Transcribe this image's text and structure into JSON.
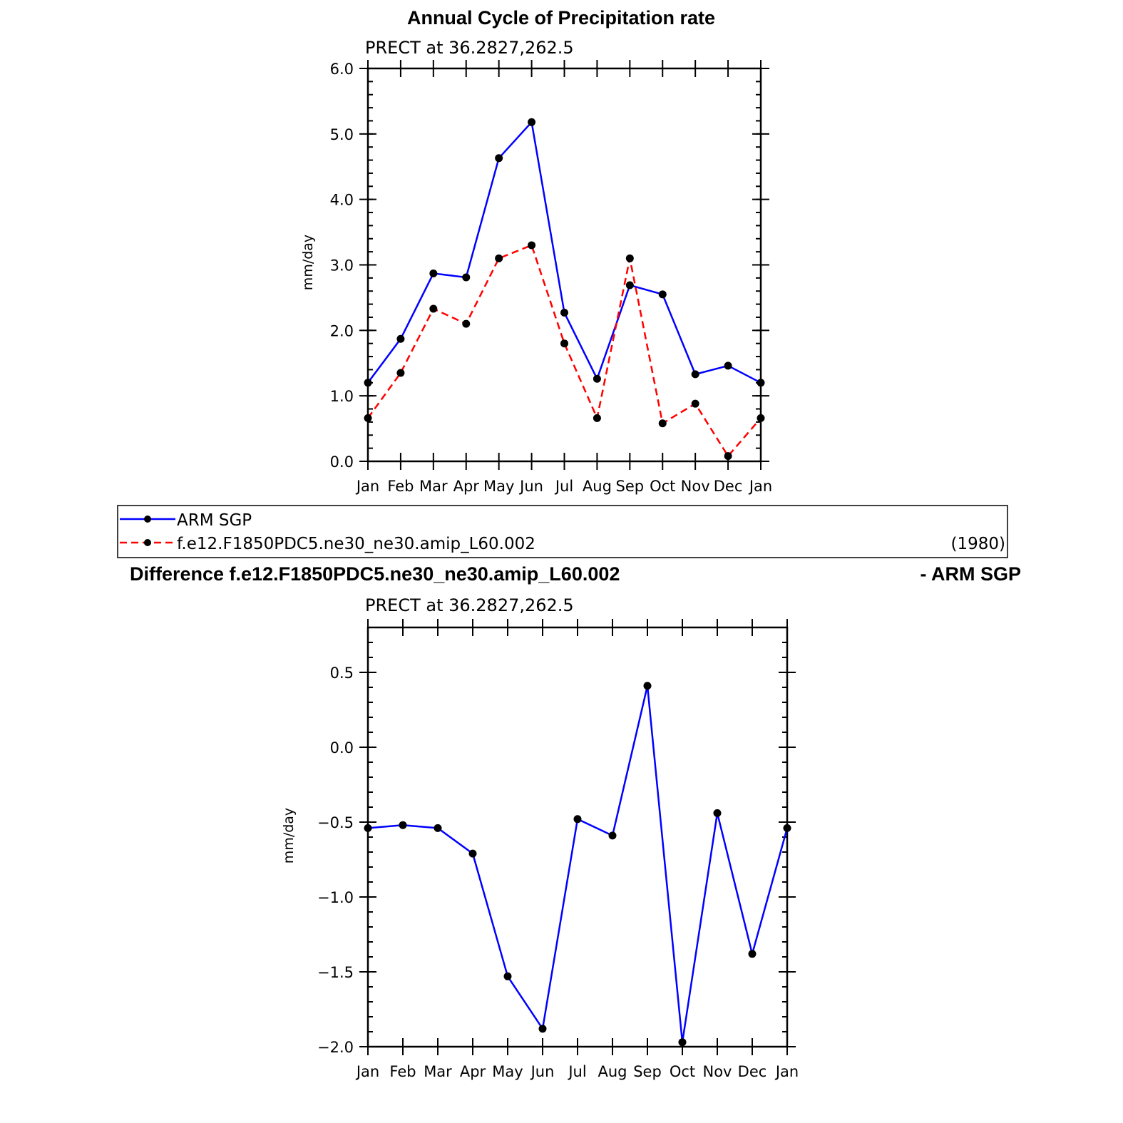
{
  "chart_data": [
    {
      "type": "line",
      "title": "Annual Cycle of Precipitation rate",
      "subtitle": "PRECT at 36.2827,262.5",
      "ylabel": "mm/day",
      "ylim": [
        0,
        6
      ],
      "yticks": [
        "0.0",
        "1.0",
        "2.0",
        "3.0",
        "4.0",
        "5.0",
        "6.0"
      ],
      "categories": [
        "Jan",
        "Feb",
        "Mar",
        "Apr",
        "May",
        "Jun",
        "Jul",
        "Aug",
        "Sep",
        "Oct",
        "Nov",
        "Dec",
        "Jan"
      ],
      "series": [
        {
          "name": "ARM SGP",
          "color": "#0000ff",
          "dash": "solid",
          "values": [
            1.2,
            1.87,
            2.87,
            2.81,
            4.63,
            5.18,
            2.27,
            1.26,
            2.69,
            2.55,
            1.33,
            1.46,
            1.2
          ]
        },
        {
          "name": "f.e12.F1850PDC5.ne30_ne30.amip_L60.002",
          "color": "#ff0000",
          "dash": "dashed",
          "values": [
            0.66,
            1.35,
            2.33,
            2.1,
            3.1,
            3.3,
            1.8,
            0.66,
            3.1,
            0.58,
            0.88,
            0.08,
            0.66
          ]
        }
      ],
      "grid": false
    },
    {
      "type": "line",
      "title": "Difference f.e12.F1850PDC5.ne30_ne30.amip_L60.002",
      "title_right": "- ARM SGP",
      "subtitle": "PRECT at 36.2827,262.5",
      "ylabel": "mm/day",
      "ylim": [
        -2.0,
        0.8
      ],
      "yticks": [
        "0.5",
        "0.0",
        "−0.5",
        "−1.0",
        "−1.5",
        "−2.0"
      ],
      "categories": [
        "Jan",
        "Feb",
        "Mar",
        "Apr",
        "May",
        "Jun",
        "Jul",
        "Aug",
        "Sep",
        "Oct",
        "Nov",
        "Dec",
        "Jan"
      ],
      "series": [
        {
          "color": "#0000ff",
          "dash": "solid",
          "values": [
            -0.54,
            -0.52,
            -0.54,
            -0.71,
            -1.53,
            -1.88,
            -0.48,
            -0.59,
            0.41,
            -1.97,
            -0.44,
            -1.38,
            -0.54
          ]
        }
      ],
      "grid": false
    }
  ],
  "legend": {
    "entries": [
      {
        "label": "ARM SGP",
        "color": "#0000ff",
        "dash": "solid"
      },
      {
        "label": "f.e12.F1850PDC5.ne30_ne30.amip_L60.002",
        "color": "#ff0000",
        "dash": "dashed"
      }
    ],
    "note": "(1980)"
  }
}
